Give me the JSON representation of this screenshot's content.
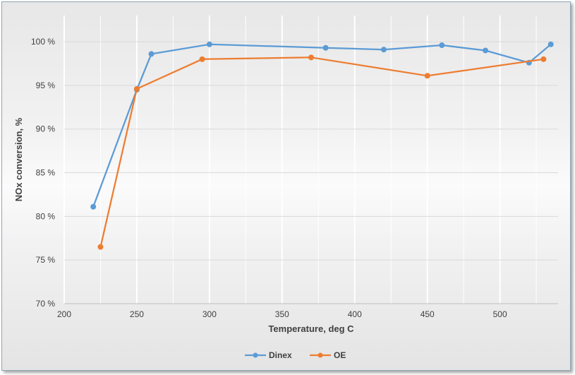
{
  "chart_data": {
    "type": "line",
    "title": "",
    "xlabel": "Temperature, deg C",
    "ylabel": "NOx conversion, %",
    "xlim": [
      200,
      540
    ],
    "ylim": [
      70,
      103
    ],
    "x_ticks": [
      "200",
      "250",
      "300",
      "350",
      "400",
      "450",
      "500"
    ],
    "x_tick_values": [
      200,
      250,
      300,
      350,
      400,
      450,
      500
    ],
    "y_ticks": [
      "70 %",
      "75 %",
      "80 %",
      "85 %",
      "90 %",
      "95 %",
      "100 %"
    ],
    "y_tick_values": [
      70,
      75,
      80,
      85,
      90,
      95,
      100
    ],
    "grid": true,
    "legend_position": "bottom",
    "series": [
      {
        "name": "Dinex",
        "color": "#5b9bd5",
        "points": [
          [
            220,
            81.1
          ],
          [
            250,
            94.5
          ],
          [
            260,
            98.6
          ],
          [
            300,
            99.7
          ],
          [
            380,
            99.3
          ],
          [
            420,
            99.1
          ],
          [
            460,
            99.6
          ],
          [
            490,
            99.0
          ],
          [
            520,
            97.6
          ],
          [
            535,
            99.7
          ]
        ]
      },
      {
        "name": "OE",
        "color": "#ed7d31",
        "points": [
          [
            225,
            76.5
          ],
          [
            250,
            94.6
          ],
          [
            295,
            98.0
          ],
          [
            370,
            98.2
          ],
          [
            450,
            96.1
          ],
          [
            530,
            98.0
          ]
        ]
      }
    ]
  }
}
